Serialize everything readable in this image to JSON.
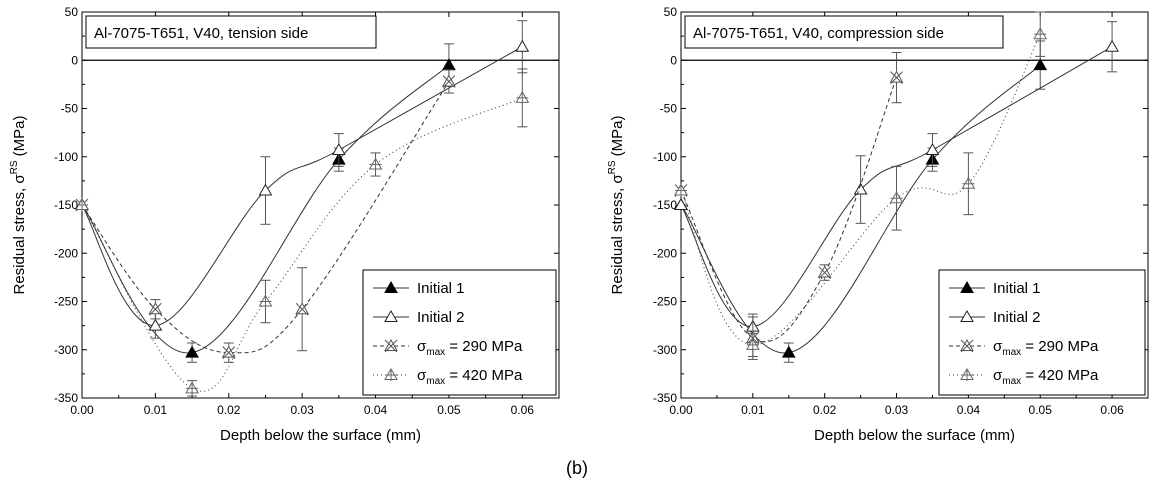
{
  "figure_label": "(b)",
  "colors": {
    "axis": "#000000",
    "series": "#333333",
    "errorbar": "#555555"
  },
  "chart_data": [
    {
      "type": "line",
      "title": "Al-7075-T651, V40, tension side",
      "xlabel": "Depth below the surface (mm)",
      "ylabel_main": "Residual stress, σ",
      "ylabel_sup": "RS",
      "ylabel_unit": " (MPa)",
      "xlim": [
        0,
        0.065
      ],
      "ylim": [
        -350,
        50
      ],
      "xticks": [
        "0.00",
        "0.01",
        "0.02",
        "0.03",
        "0.04",
        "0.05",
        "0.06"
      ],
      "yticks": [
        "50",
        "0",
        "-50",
        "-100",
        "-150",
        "-200",
        "-250",
        "-300",
        "-350"
      ],
      "legend_position": "bottom-right",
      "series": [
        {
          "name": "Initial 1",
          "marker": "filled-triangle",
          "dash": "none",
          "x": [
            0,
            0.015,
            0.035,
            0.05
          ],
          "y": [
            -150,
            -303,
            -103,
            -5
          ],
          "err": [
            0,
            10,
            12,
            22
          ]
        },
        {
          "name": "Initial 2",
          "marker": "open-triangle",
          "dash": "none",
          "x": [
            0,
            0.01,
            0.025,
            0.035,
            0.06
          ],
          "y": [
            -150,
            -275,
            -135,
            -93,
            14
          ],
          "err": [
            0,
            13,
            35,
            17,
            27
          ]
        },
        {
          "name_main": "σ",
          "name_sub": "max",
          "name_rest": " = 290 MPa",
          "marker": "x-triangle",
          "dash": "4,3",
          "x": [
            0,
            0.01,
            0.02,
            0.03,
            0.05
          ],
          "y": [
            -150,
            -258,
            -303,
            -258,
            -22
          ],
          "err": [
            0,
            10,
            10,
            43,
            12
          ]
        },
        {
          "name_main": "σ",
          "name_sub": "max",
          "name_rest": " = 420 MPa",
          "marker": "plus-triangle",
          "dash": "1,3",
          "x": [
            0,
            0.015,
            0.025,
            0.04,
            0.06
          ],
          "y": [
            -150,
            -340,
            -250,
            -108,
            -39
          ],
          "err": [
            0,
            8,
            22,
            12,
            30
          ]
        }
      ]
    },
    {
      "type": "line",
      "title": "Al-7075-T651, V40, compression side",
      "xlabel": "Depth below the surface (mm)",
      "ylabel_main": "Residual stress, σ",
      "ylabel_sup": "RS",
      "ylabel_unit": " (MPa)",
      "xlim": [
        0,
        0.065
      ],
      "ylim": [
        -350,
        50
      ],
      "xticks": [
        "0.00",
        "0.01",
        "0.02",
        "0.03",
        "0.04",
        "0.05",
        "0.06"
      ],
      "yticks": [
        "50",
        "0",
        "-50",
        "-100",
        "-150",
        "-200",
        "-250",
        "-300",
        "-350"
      ],
      "legend_position": "bottom-right",
      "series": [
        {
          "name": "Initial 1",
          "marker": "filled-triangle",
          "dash": "none",
          "x": [
            0,
            0.015,
            0.035,
            0.05
          ],
          "y": [
            -150,
            -303,
            -103,
            -5
          ],
          "err": [
            0,
            10,
            12,
            25
          ]
        },
        {
          "name": "Initial 2",
          "marker": "open-triangle",
          "dash": "none",
          "x": [
            0,
            0.01,
            0.025,
            0.035,
            0.06
          ],
          "y": [
            -150,
            -276,
            -134,
            -93,
            14
          ],
          "err": [
            0,
            13,
            35,
            17,
            26
          ]
        },
        {
          "name_main": "σ",
          "name_sub": "max",
          "name_rest": " = 290 MPa",
          "marker": "x-triangle",
          "dash": "4,3",
          "x": [
            0,
            0.01,
            0.02,
            0.03
          ],
          "y": [
            -135,
            -288,
            -220,
            -18
          ],
          "err": [
            0,
            22,
            8,
            26
          ]
        },
        {
          "name_main": "σ",
          "name_sub": "max",
          "name_rest": " = 420 MPa",
          "marker": "plus-triangle",
          "dash": "1,3",
          "x": [
            0,
            0.01,
            0.03,
            0.04,
            0.05
          ],
          "y": [
            -135,
            -295,
            -143,
            -128,
            27
          ],
          "err": [
            0,
            12,
            33,
            32,
            23
          ]
        }
      ]
    }
  ]
}
